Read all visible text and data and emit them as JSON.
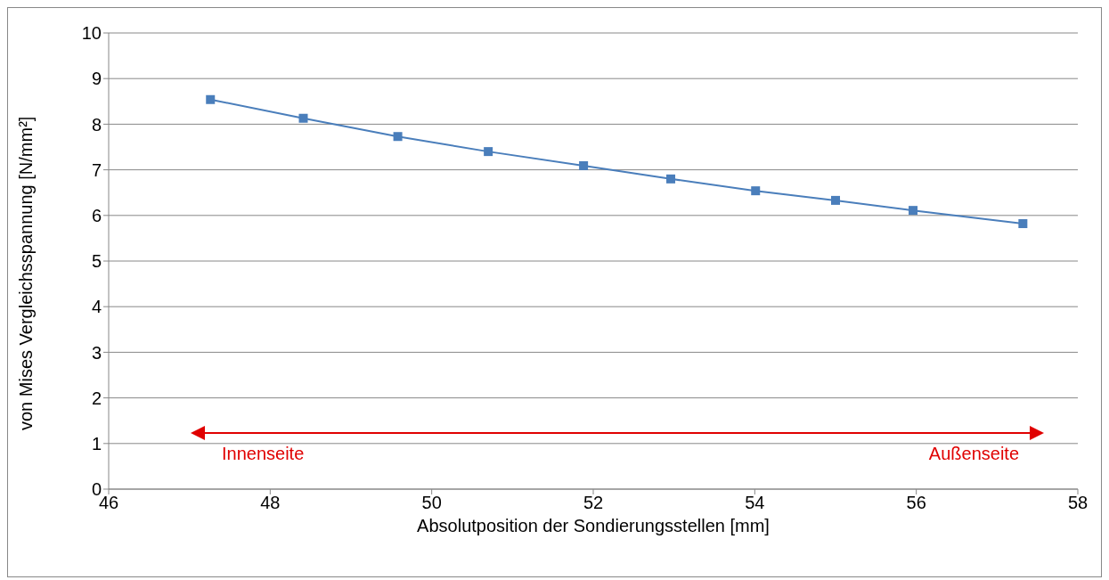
{
  "chart_data": {
    "type": "line",
    "xlabel": "Absolutposition der Sondierungsstellen [mm]",
    "ylabel": "von Mises Vergleichsspannung [N/mm²]",
    "x": [
      47.26,
      48.41,
      49.58,
      50.7,
      51.88,
      52.96,
      54.01,
      55.0,
      55.96,
      57.32
    ],
    "series": [
      {
        "color": "#4a7ebb",
        "values": [
          8.54,
          8.13,
          7.73,
          7.4,
          7.09,
          6.8,
          6.54,
          6.33,
          6.11,
          5.82
        ]
      }
    ],
    "xlim": [
      46,
      58
    ],
    "xticks": [
      46,
      48,
      50,
      52,
      54,
      56,
      58
    ],
    "ylim": [
      0,
      10
    ],
    "yticks": [
      0,
      1,
      2,
      3,
      4,
      5,
      6,
      7,
      8,
      9,
      10
    ],
    "grid": "y",
    "marker": "square",
    "line_style": "solid",
    "annotations": [
      "Innenseite",
      "Außenseite"
    ]
  }
}
